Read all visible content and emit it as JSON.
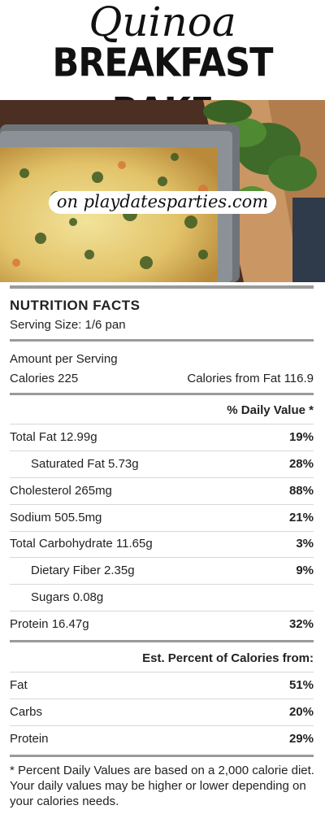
{
  "header": {
    "title_script": "Quinoa",
    "title_block": "BREAKFAST BAKE",
    "site": "on playdatesparties.com"
  },
  "nutrition": {
    "heading": "NUTRITION FACTS",
    "serving_size": "Serving Size: 1/6 pan",
    "amount_per_serving": "Amount per Serving",
    "calories": "Calories 225",
    "calories_from_fat": "Calories from Fat 116.9",
    "daily_value_header": "% Daily Value *",
    "rows": [
      {
        "label": "Total Fat 12.99g",
        "value": "19%"
      },
      {
        "label": "Saturated Fat 5.73g",
        "value": "28%"
      },
      {
        "label": "Cholesterol 265mg",
        "value": "88%"
      },
      {
        "label": "Sodium 505.5mg",
        "value": "21%"
      },
      {
        "label": "Total Carbohydrate 11.65g",
        "value": "3%"
      },
      {
        "label": "Dietary Fiber 2.35g",
        "value": "9%"
      },
      {
        "label": "Sugars 0.08g",
        "value": ""
      },
      {
        "label": "Protein 16.47g",
        "value": "32%"
      }
    ],
    "calories_from_header": "Est. Percent of Calories from:",
    "calorie_sources": [
      {
        "label": "Fat",
        "value": "51%"
      },
      {
        "label": "Carbs",
        "value": "20%"
      },
      {
        "label": "Protein",
        "value": "29%"
      }
    ],
    "footnote": "* Percent Daily Values are based on a 2,000 calorie diet. Your daily values may be higher or lower depending on your calories needs."
  },
  "colors": {
    "rule": "#9a9a9a",
    "casserole": "#e8d07a",
    "spinach": "#3f6b2a",
    "wood": "#c99664"
  }
}
